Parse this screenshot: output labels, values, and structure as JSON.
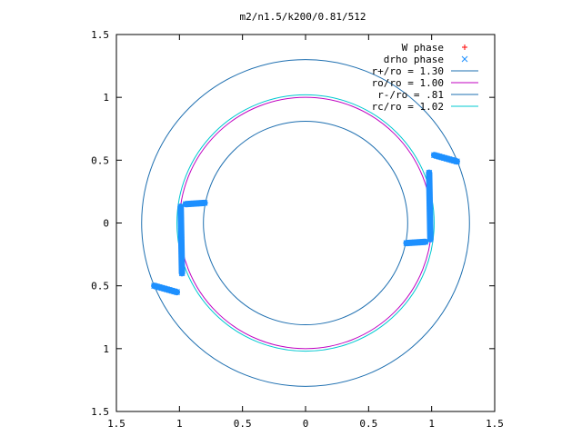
{
  "chart_data": {
    "type": "scatter",
    "title": "m2/n1.5/k200/0.81/512",
    "xlabel": "",
    "ylabel": "",
    "xlim": [
      -1.5,
      1.5
    ],
    "ylim": [
      -1.5,
      1.5
    ],
    "xticks": [
      -1.5,
      -1,
      -0.5,
      0,
      0.5,
      1,
      1.5
    ],
    "yticks": [
      -1.5,
      -1,
      -0.5,
      0,
      0.5,
      1,
      1.5
    ],
    "xtick_labels": [
      "1.5",
      "1",
      "0.5",
      "0",
      "0.5",
      "1",
      "1.5"
    ],
    "ytick_labels": [
      "1.5",
      "1",
      "0.5",
      "0",
      "0.5",
      "1",
      "1.5"
    ],
    "grid": false,
    "legend_position": "top-right",
    "series": [
      {
        "name": "W phase",
        "kind": "points",
        "marker": "plus",
        "color": "#ff0000",
        "points": []
      },
      {
        "name": "drho phase",
        "kind": "points",
        "marker": "cross",
        "color": "#1e90ff",
        "segments": [
          {
            "from": [
              1.2,
              0.49
            ],
            "to": [
              1.02,
              0.54
            ]
          },
          {
            "from": [
              0.98,
              0.4
            ],
            "to": [
              0.99,
              -0.13
            ]
          },
          {
            "from": [
              0.95,
              -0.15
            ],
            "to": [
              0.8,
              -0.16
            ]
          },
          {
            "from": [
              -1.2,
              -0.5
            ],
            "to": [
              -1.02,
              -0.55
            ]
          },
          {
            "from": [
              -0.98,
              -0.4
            ],
            "to": [
              -0.99,
              0.13
            ]
          },
          {
            "from": [
              -0.95,
              0.15
            ],
            "to": [
              -0.8,
              0.16
            ]
          }
        ]
      },
      {
        "name": "r+/ro = 1.30",
        "kind": "circle",
        "radius": 1.3,
        "color": "#1e6fb0"
      },
      {
        "name": "ro/ro = 1.00",
        "kind": "circle",
        "radius": 1.0,
        "color": "#c000c0"
      },
      {
        "name": "r-/ro = .81",
        "kind": "circle",
        "radius": 0.81,
        "color": "#1e6fb0"
      },
      {
        "name": "rc/ro = 1.02",
        "kind": "circle",
        "radius": 1.02,
        "color": "#00c8d0"
      }
    ]
  }
}
